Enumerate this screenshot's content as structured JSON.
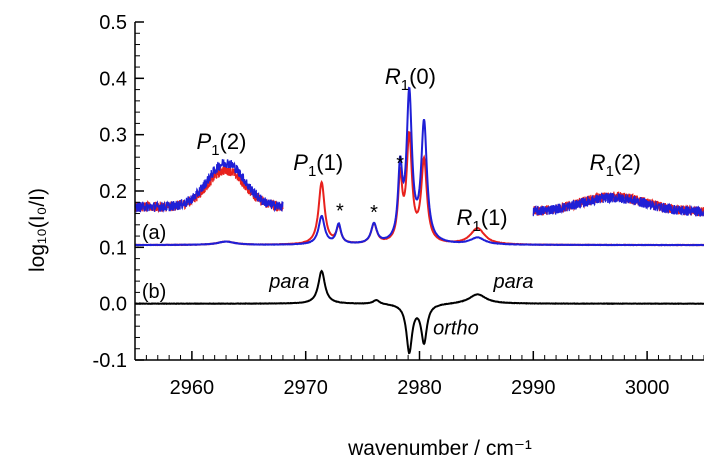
{
  "chart_data": {
    "type": "line",
    "xlabel": "wavenumber / cm⁻¹",
    "ylabel": "log₁₀(I₀/I)",
    "xlim": [
      2955,
      3005
    ],
    "ylim": [
      -0.1,
      0.5
    ],
    "xticks": [
      2960,
      2970,
      2980,
      2990,
      3000
    ],
    "yticks": [
      -0.1,
      0.0,
      0.1,
      0.2,
      0.3,
      0.4,
      0.5
    ],
    "ytick_labels": [
      "-0.1",
      "0.0",
      "0.1",
      "0.2",
      "0.3",
      "0.4",
      "0.5"
    ],
    "grid": false,
    "series": [
      {
        "color": "#e8211d",
        "trace": "a",
        "baseline": 0.104,
        "peaks": [
          {
            "x": 2963.0,
            "h": 0.006,
            "w": 0.9
          },
          {
            "x": 2971.4,
            "h": 0.11,
            "w": 0.32
          },
          {
            "x": 2972.9,
            "h": 0.03,
            "w": 0.25
          },
          {
            "x": 2976.0,
            "h": 0.035,
            "w": 0.3
          },
          {
            "x": 2978.3,
            "h": 0.11,
            "w": 0.22
          },
          {
            "x": 2979.1,
            "h": 0.185,
            "w": 0.28
          },
          {
            "x": 2980.4,
            "h": 0.145,
            "w": 0.3
          },
          {
            "x": 2985.1,
            "h": 0.029,
            "w": 0.75
          }
        ],
        "insets": [
          {
            "x0": 2955,
            "x1": 2968,
            "base": 0.172,
            "peak_x": 2963.0,
            "peak_h": 0.065,
            "peak_w": 2.3,
            "tail": 0.026
          },
          {
            "x0": 2990,
            "x1": 3005,
            "base": 0.163,
            "peak_x": 2997.0,
            "peak_h": 0.027,
            "peak_w": 4.0,
            "tail": 0.0
          }
        ]
      },
      {
        "color": "#1f1fd6",
        "trace": "a",
        "baseline": 0.104,
        "peaks": [
          {
            "x": 2963.0,
            "h": 0.006,
            "w": 0.9
          },
          {
            "x": 2971.4,
            "h": 0.05,
            "w": 0.32
          },
          {
            "x": 2972.9,
            "h": 0.035,
            "w": 0.25
          },
          {
            "x": 2976.0,
            "h": 0.035,
            "w": 0.3
          },
          {
            "x": 2978.3,
            "h": 0.125,
            "w": 0.22
          },
          {
            "x": 2979.1,
            "h": 0.26,
            "w": 0.28
          },
          {
            "x": 2980.4,
            "h": 0.21,
            "w": 0.3
          },
          {
            "x": 2985.1,
            "h": 0.012,
            "w": 0.75
          }
        ],
        "insets": [
          {
            "x0": 2955,
            "x1": 2968,
            "base": 0.172,
            "peak_x": 2963.0,
            "peak_h": 0.078,
            "peak_w": 2.3,
            "tail": 0.026
          },
          {
            "x0": 2990,
            "x1": 3005,
            "base": 0.163,
            "peak_x": 2997.0,
            "peak_h": 0.025,
            "peak_w": 4.0,
            "tail": 0.0
          }
        ]
      },
      {
        "color": "#000000",
        "trace": "b",
        "baseline": 0.0,
        "peaks": [
          {
            "x": 2971.4,
            "h": 0.058,
            "w": 0.35
          },
          {
            "x": 2976.2,
            "h": 0.007,
            "w": 0.35
          },
          {
            "x": 2979.1,
            "h": -0.085,
            "w": 0.3
          },
          {
            "x": 2980.4,
            "h": -0.068,
            "w": 0.3
          },
          {
            "x": 2985.1,
            "h": 0.017,
            "w": 0.9
          }
        ],
        "insets": []
      }
    ],
    "annotations": [
      {
        "text": "(a)",
        "x": 2955.6,
        "y": 0.115
      },
      {
        "text": "(b)",
        "x": 2955.6,
        "y": 0.01
      },
      {
        "text": "para",
        "x": 2966.8,
        "y": 0.028,
        "italic": true
      },
      {
        "text": "para",
        "x": 2986.5,
        "y": 0.028,
        "italic": true
      },
      {
        "text": "ortho",
        "x": 2981.2,
        "y": -0.055,
        "italic": true
      },
      {
        "text": "*",
        "x": 2973.0,
        "y": 0.153
      },
      {
        "text": "*",
        "x": 2976.0,
        "y": 0.15
      },
      {
        "text": "*",
        "x": 2978.3,
        "y": 0.237
      }
    ],
    "peak_labels": [
      {
        "letter": "P",
        "sub": "1",
        "rest": "(2)",
        "x": 2962.6,
        "y": 0.275
      },
      {
        "letter": "P",
        "sub": "1",
        "rest": "(1)",
        "x": 2971.1,
        "y": 0.237
      },
      {
        "letter": "R",
        "sub": "1",
        "rest": "(0)",
        "x": 2979.2,
        "y": 0.39
      },
      {
        "letter": "R",
        "sub": "1",
        "rest": "(1)",
        "x": 2985.5,
        "y": 0.14
      },
      {
        "letter": "R",
        "sub": "1",
        "rest": "(2)",
        "x": 2997.2,
        "y": 0.237
      }
    ]
  }
}
